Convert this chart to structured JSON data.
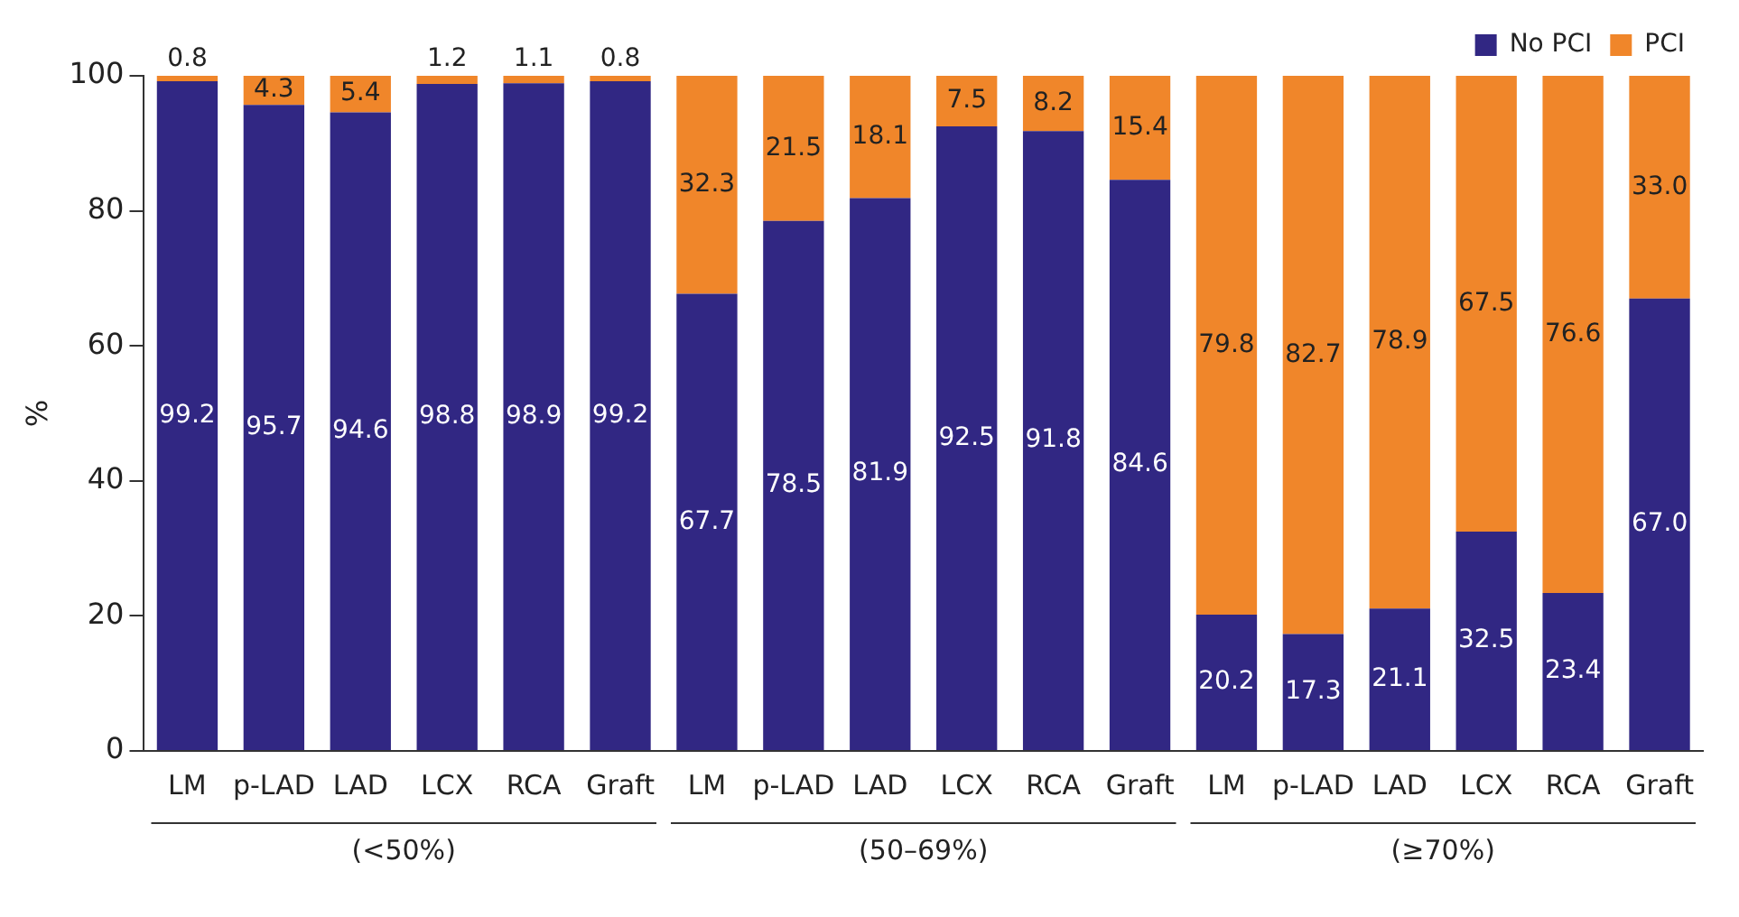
{
  "chart_data": {
    "type": "bar",
    "stacked": true,
    "ylabel": "%",
    "categories": [
      "LM",
      "p-LAD",
      "LAD",
      "LCX",
      "RCA",
      "Graft",
      "LM",
      "p-LAD",
      "LAD",
      "LCX",
      "RCA",
      "Graft",
      "LM",
      "p-LAD",
      "LAD",
      "LCX",
      "RCA",
      "Graft"
    ],
    "series": [
      {
        "name": "No PCI",
        "color": "#312783",
        "values": [
          99.2,
          95.7,
          94.6,
          98.8,
          98.9,
          99.2,
          67.7,
          78.5,
          81.9,
          92.5,
          91.8,
          84.6,
          20.2,
          17.3,
          21.1,
          32.5,
          23.4,
          67
        ],
        "value_labels": [
          "99.2",
          "95.7",
          "94.6",
          "98.8",
          "98.9",
          "99.2",
          "67.7",
          "78.5",
          "81.9",
          "92.5",
          "91.8",
          "84.6",
          "20.2",
          "17.3",
          "21.1",
          "32.5",
          "23.4",
          "67.0"
        ]
      },
      {
        "name": "PCI",
        "color": "#f0862a",
        "values": [
          0.8,
          4.3,
          5.4,
          1.2,
          1.1,
          0.8,
          32.3,
          21.5,
          18.1,
          7.5,
          8.2,
          15.4,
          79.8,
          82.7,
          78.9,
          67.5,
          76.6,
          33
        ],
        "value_labels": [
          "0.8",
          "4.3",
          "5.4",
          "1.2",
          "1.1",
          "0.8",
          "32.3",
          "21.5",
          "18.1",
          "7.5",
          "8.2",
          "15.4",
          "79.8",
          "82.7",
          "78.9",
          "67.5",
          "76.6",
          "33.0"
        ]
      }
    ],
    "ylim": [
      0,
      100
    ],
    "yticks": [
      0,
      20,
      40,
      60,
      80,
      100
    ],
    "grid": false,
    "legend": "top right",
    "annotations": [
      "(<50%)",
      "(50–69%)",
      "(≥70%)"
    ]
  }
}
